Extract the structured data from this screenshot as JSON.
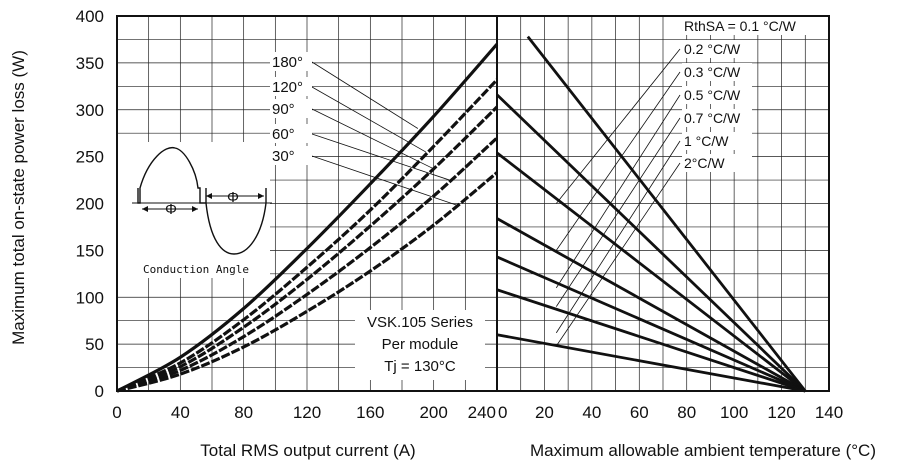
{
  "chart_data": [
    {
      "type": "line",
      "x_range": [
        0,
        240
      ],
      "y_range": [
        0,
        400
      ],
      "x_ticks": [
        "0",
        "40",
        "80",
        "120",
        "160",
        "200",
        "240"
      ],
      "y_ticks": [
        "0",
        "50",
        "100",
        "150",
        "200",
        "250",
        "300",
        "350",
        "400"
      ],
      "xlabel": "Total RMS output current (A)",
      "ylabel": "Maximum total on-state power loss (W)",
      "grid": true,
      "series": [
        {
          "name": "180°",
          "x": [
            0,
            40,
            80,
            120,
            160,
            200,
            240
          ],
          "y": [
            0,
            36,
            88,
            152,
            221,
            293,
            370
          ]
        },
        {
          "name": "120°",
          "x": [
            0,
            40,
            80,
            120,
            160,
            200,
            240
          ],
          "y": [
            0,
            30,
            76,
            132,
            193,
            261,
            332
          ]
        },
        {
          "name": "90°",
          "x": [
            0,
            40,
            80,
            120,
            160,
            200,
            240
          ],
          "y": [
            0,
            26,
            68,
            119,
            176,
            237,
            303
          ]
        },
        {
          "name": "60°",
          "x": [
            0,
            40,
            80,
            120,
            160,
            200,
            240
          ],
          "y": [
            0,
            22,
            58,
            103,
            153,
            208,
            270
          ]
        },
        {
          "name": "30°",
          "x": [
            0,
            40,
            80,
            120,
            160,
            200,
            240
          ],
          "y": [
            0,
            18,
            47,
            85,
            128,
            177,
            233
          ]
        }
      ],
      "annotations": {
        "angles": [
          "180°",
          "120°",
          "90°",
          "60°",
          "30°"
        ],
        "conduction_label": "Conduction Angle",
        "phi": "Φ",
        "series_info": [
          "VSK.105 Series",
          "Per module",
          "Tj = 130°C"
        ]
      }
    },
    {
      "type": "line",
      "x_range": [
        0,
        140
      ],
      "y_range": [
        0,
        400
      ],
      "x_ticks": [
        "0",
        "20",
        "40",
        "60",
        "80",
        "100",
        "120",
        "140"
      ],
      "xlabel": "Maximum allowable ambient temperature (°C)",
      "grid": true,
      "series": [
        {
          "name": "RthSA = 0.1 °C/W",
          "x": [
            13,
            130
          ],
          "y": [
            378,
            0
          ]
        },
        {
          "name": "0.2 °C/W",
          "x": [
            0,
            130
          ],
          "y": [
            316,
            0
          ]
        },
        {
          "name": "0.3 °C/W",
          "x": [
            0,
            130
          ],
          "y": [
            254,
            0
          ]
        },
        {
          "name": "0.5 °C/W",
          "x": [
            0,
            130
          ],
          "y": [
            184,
            0
          ]
        },
        {
          "name": "0.7 °C/W",
          "x": [
            0,
            130
          ],
          "y": [
            143,
            0
          ]
        },
        {
          "name": "1 °C/W",
          "x": [
            0,
            130
          ],
          "y": [
            108,
            0
          ]
        },
        {
          "name": "2°C/W",
          "x": [
            0,
            130
          ],
          "y": [
            60,
            0
          ]
        }
      ]
    }
  ]
}
